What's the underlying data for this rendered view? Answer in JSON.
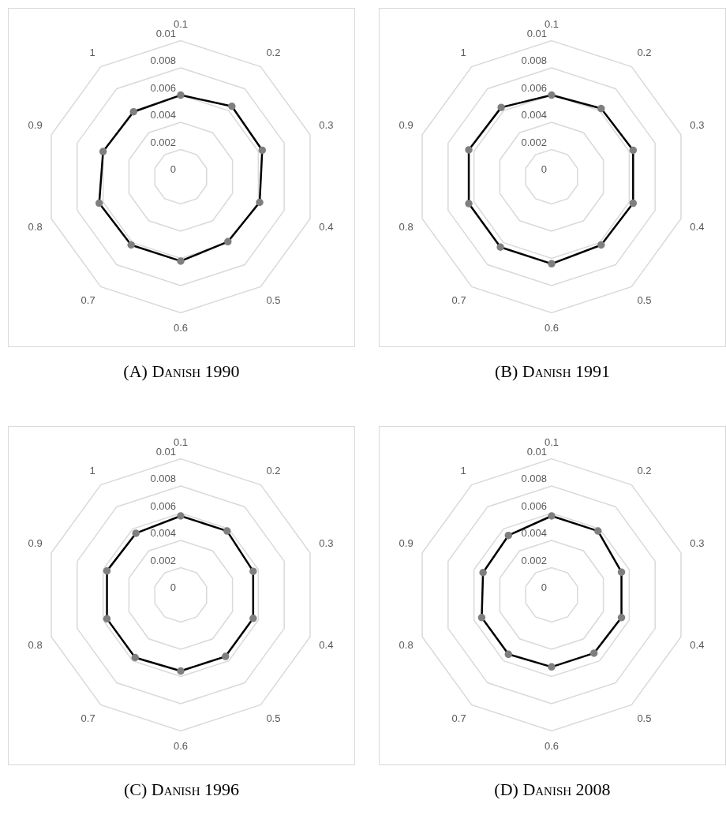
{
  "chart_data": [
    {
      "type": "radar",
      "title": "(A) Danish 1990",
      "categories": [
        "0.1",
        "0.2",
        "0.3",
        "0.4",
        "0.5",
        "0.6",
        "0.7",
        "0.8",
        "0.9",
        "1"
      ],
      "series": [
        {
          "color": "#000000",
          "values": [
            0.006,
            0.0064,
            0.0063,
            0.0061,
            0.0059,
            0.0062,
            0.0062,
            0.0063,
            0.006,
            0.0059
          ]
        }
      ],
      "ylim": [
        0,
        0.01
      ],
      "yticks": [
        0,
        0.002,
        0.004,
        0.006,
        0.008,
        0.01
      ],
      "grid": true,
      "legend": false,
      "marker": "circle",
      "line_style": "solid"
    },
    {
      "type": "radar",
      "title": "(B) Danish 1991",
      "categories": [
        "0.1",
        "0.2",
        "0.3",
        "0.4",
        "0.5",
        "0.6",
        "0.7",
        "0.8",
        "0.9",
        "1"
      ],
      "series": [
        {
          "color": "#000000",
          "values": [
            0.006,
            0.0062,
            0.0063,
            0.0063,
            0.0062,
            0.0064,
            0.0064,
            0.0064,
            0.0064,
            0.0063
          ]
        }
      ],
      "ylim": [
        0,
        0.01
      ],
      "yticks": [
        0,
        0.002,
        0.004,
        0.006,
        0.008,
        0.01
      ],
      "grid": true,
      "legend": false,
      "marker": "circle",
      "line_style": "solid"
    },
    {
      "type": "radar",
      "title": "(C) Danish 1996",
      "categories": [
        "0.1",
        "0.2",
        "0.3",
        "0.4",
        "0.5",
        "0.6",
        "0.7",
        "0.8",
        "0.9",
        "1"
      ],
      "series": [
        {
          "color": "#000000",
          "values": [
            0.0058,
            0.0058,
            0.0056,
            0.0056,
            0.0056,
            0.0056,
            0.0057,
            0.0057,
            0.0057,
            0.0056
          ]
        }
      ],
      "ylim": [
        0,
        0.01
      ],
      "yticks": [
        0,
        0.002,
        0.004,
        0.006,
        0.008,
        0.01
      ],
      "grid": true,
      "legend": false,
      "marker": "circle",
      "line_style": "solid"
    },
    {
      "type": "radar",
      "title": "(D) Danish 2008",
      "categories": [
        "0.1",
        "0.2",
        "0.3",
        "0.4",
        "0.5",
        "0.6",
        "0.7",
        "0.8",
        "0.9",
        "1"
      ],
      "series": [
        {
          "color": "#000000",
          "values": [
            0.0058,
            0.0058,
            0.0054,
            0.0054,
            0.0053,
            0.0053,
            0.0054,
            0.0054,
            0.0053,
            0.0054
          ]
        }
      ],
      "ylim": [
        0,
        0.01
      ],
      "yticks": [
        0,
        0.002,
        0.004,
        0.006,
        0.008,
        0.01
      ],
      "grid": true,
      "legend": false,
      "marker": "circle",
      "line_style": "solid"
    }
  ]
}
